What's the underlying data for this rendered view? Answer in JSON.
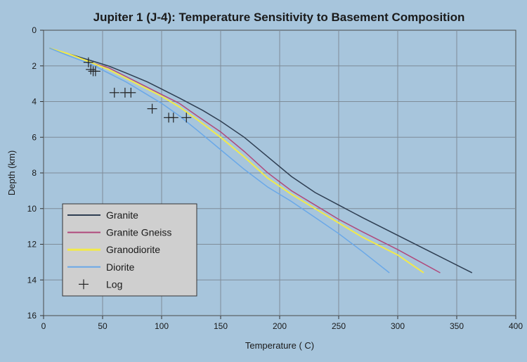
{
  "chart_data": {
    "type": "line",
    "title": "Jupiter 1 (J-4): Temperature Sensitivity to Basement Composition",
    "xlabel": "Temperature ( C)",
    "ylabel": "Depth (km)",
    "xlim": [
      0,
      400
    ],
    "ylim": [
      0,
      16
    ],
    "y_inverted": true,
    "grid": true,
    "legend_placement": "bottom-left",
    "x_ticks": [
      "0",
      "50",
      "100",
      "150",
      "200",
      "250",
      "300",
      "350",
      "400"
    ],
    "y_ticks": [
      "0",
      "2",
      "4",
      "6",
      "8",
      "10",
      "12",
      "14",
      "16"
    ],
    "series": [
      {
        "name": "Granite",
        "kind": "line",
        "color": "#2e3e52",
        "points": [
          [
            5,
            1.0
          ],
          [
            20,
            1.3
          ],
          [
            40,
            1.7
          ],
          [
            55,
            2.0
          ],
          [
            70,
            2.4
          ],
          [
            88,
            2.9
          ],
          [
            100,
            3.3
          ],
          [
            115,
            3.8
          ],
          [
            135,
            4.5
          ],
          [
            150,
            5.1
          ],
          [
            170,
            6.0
          ],
          [
            190,
            7.1
          ],
          [
            210,
            8.2
          ],
          [
            230,
            9.1
          ],
          [
            250,
            9.8
          ],
          [
            270,
            10.5
          ],
          [
            300,
            11.5
          ],
          [
            330,
            12.5
          ],
          [
            363,
            13.6
          ]
        ]
      },
      {
        "name": "Granite Gneiss",
        "kind": "line",
        "color": "#b04a7c",
        "points": [
          [
            5,
            1.0
          ],
          [
            20,
            1.3
          ],
          [
            40,
            1.8
          ],
          [
            55,
            2.1
          ],
          [
            70,
            2.6
          ],
          [
            85,
            3.1
          ],
          [
            100,
            3.6
          ],
          [
            115,
            4.1
          ],
          [
            130,
            4.8
          ],
          [
            150,
            5.7
          ],
          [
            170,
            6.8
          ],
          [
            190,
            8.0
          ],
          [
            210,
            9.0
          ],
          [
            230,
            9.8
          ],
          [
            250,
            10.6
          ],
          [
            270,
            11.3
          ],
          [
            300,
            12.3
          ],
          [
            336,
            13.6
          ]
        ]
      },
      {
        "name": "Granodiorite",
        "kind": "line",
        "color": "#f2ea4a",
        "points": [
          [
            5,
            1.0
          ],
          [
            20,
            1.3
          ],
          [
            40,
            1.8
          ],
          [
            55,
            2.2
          ],
          [
            70,
            2.7
          ],
          [
            85,
            3.2
          ],
          [
            100,
            3.7
          ],
          [
            115,
            4.3
          ],
          [
            130,
            5.0
          ],
          [
            150,
            6.0
          ],
          [
            170,
            7.1
          ],
          [
            190,
            8.3
          ],
          [
            210,
            9.2
          ],
          [
            230,
            10.0
          ],
          [
            250,
            10.8
          ],
          [
            270,
            11.6
          ],
          [
            300,
            12.6
          ],
          [
            322,
            13.6
          ]
        ]
      },
      {
        "name": "Diorite",
        "kind": "line",
        "color": "#6aa8e8",
        "points": [
          [
            5,
            1.0
          ],
          [
            20,
            1.4
          ],
          [
            40,
            1.9
          ],
          [
            55,
            2.4
          ],
          [
            70,
            2.9
          ],
          [
            85,
            3.5
          ],
          [
            100,
            4.1
          ],
          [
            115,
            4.8
          ],
          [
            130,
            5.6
          ],
          [
            150,
            6.7
          ],
          [
            170,
            7.8
          ],
          [
            190,
            8.8
          ],
          [
            210,
            9.6
          ],
          [
            230,
            10.5
          ],
          [
            250,
            11.4
          ],
          [
            270,
            12.4
          ],
          [
            293,
            13.6
          ]
        ]
      },
      {
        "name": "Log",
        "kind": "marker",
        "marker": "plus",
        "color": "#222222",
        "points": [
          [
            38,
            1.8
          ],
          [
            40,
            2.2
          ],
          [
            42,
            2.3
          ],
          [
            44,
            2.3
          ],
          [
            60,
            3.5
          ],
          [
            69,
            3.5
          ],
          [
            74,
            3.5
          ],
          [
            92,
            4.4
          ],
          [
            106,
            4.9
          ],
          [
            110,
            4.9
          ],
          [
            121,
            4.9
          ]
        ]
      }
    ]
  }
}
